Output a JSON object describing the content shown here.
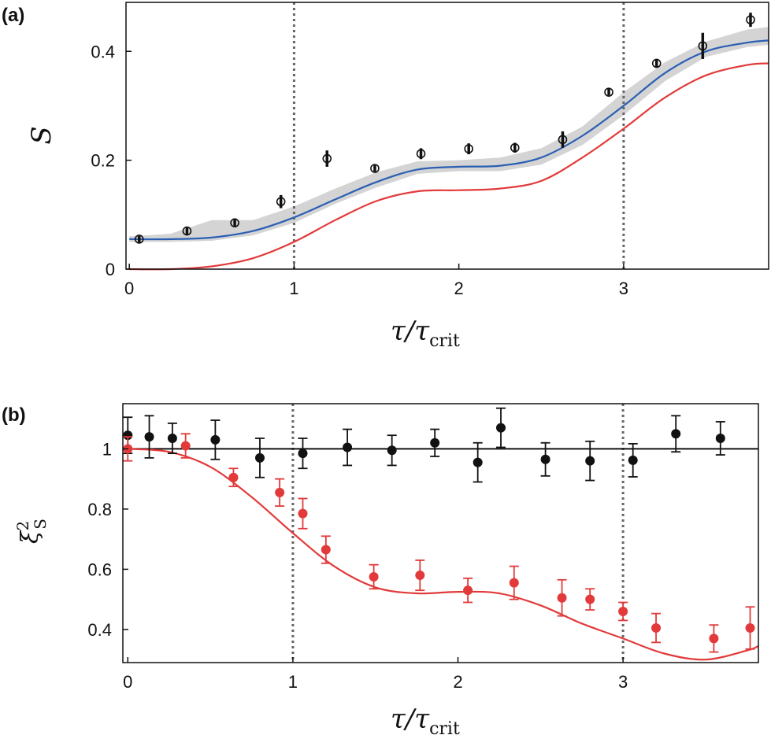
{
  "chart_data": [
    {
      "panel": "(a)",
      "type": "scatter",
      "xlabel": "τ/τ_crit",
      "xlabel_main": "τ/τ",
      "xlabel_sub": "crit",
      "ylabel": "S",
      "xlim": [
        -0.02,
        3.88
      ],
      "ylim": [
        0,
        0.49
      ],
      "xticks": [
        "0",
        "1",
        "2",
        "3"
      ],
      "yticks": [
        "0",
        "0.2",
        "0.4"
      ],
      "vlines": [
        1,
        3
      ],
      "series": [
        {
          "kind": "points-open",
          "color": "#111111",
          "points": [
            {
              "x": 0.06,
              "y": 0.055,
              "err": 0.006
            },
            {
              "x": 0.35,
              "y": 0.07,
              "err": 0.006
            },
            {
              "x": 0.64,
              "y": 0.085,
              "err": 0.006
            },
            {
              "x": 0.92,
              "y": 0.124,
              "err": 0.012
            },
            {
              "x": 1.2,
              "y": 0.203,
              "err": 0.015
            },
            {
              "x": 1.49,
              "y": 0.185,
              "err": 0.006
            },
            {
              "x": 1.77,
              "y": 0.212,
              "err": 0.01
            },
            {
              "x": 2.06,
              "y": 0.221,
              "err": 0.01
            },
            {
              "x": 2.34,
              "y": 0.223,
              "err": 0.009
            },
            {
              "x": 2.63,
              "y": 0.238,
              "err": 0.015
            },
            {
              "x": 2.91,
              "y": 0.325,
              "err": 0.006
            },
            {
              "x": 3.2,
              "y": 0.378,
              "err": 0.008
            },
            {
              "x": 3.48,
              "y": 0.41,
              "err": 0.024
            },
            {
              "x": 3.77,
              "y": 0.458,
              "err": 0.013
            }
          ]
        },
        {
          "kind": "line",
          "color": "#2b5fb4",
          "x": [
            0,
            0.25,
            0.5,
            0.75,
            1.0,
            1.25,
            1.5,
            1.75,
            2.0,
            2.25,
            2.5,
            2.75,
            3.0,
            3.25,
            3.5,
            3.75,
            3.88
          ],
          "y": [
            0.055,
            0.055,
            0.058,
            0.07,
            0.095,
            0.128,
            0.16,
            0.183,
            0.188,
            0.19,
            0.205,
            0.245,
            0.3,
            0.36,
            0.4,
            0.416,
            0.42
          ]
        },
        {
          "kind": "line",
          "color": "#e23a3a",
          "x": [
            0,
            0.25,
            0.5,
            0.75,
            1.0,
            1.25,
            1.5,
            1.75,
            2.0,
            2.25,
            2.5,
            2.75,
            3.0,
            3.25,
            3.5,
            3.75,
            3.88
          ],
          "y": [
            0.0,
            0.0,
            0.005,
            0.02,
            0.05,
            0.09,
            0.125,
            0.143,
            0.145,
            0.148,
            0.162,
            0.205,
            0.258,
            0.315,
            0.356,
            0.375,
            0.378
          ]
        },
        {
          "kind": "band",
          "color": "#cfcfcf",
          "x": [
            0,
            0.25,
            0.5,
            0.75,
            1.0,
            1.25,
            1.5,
            1.75,
            2.0,
            2.25,
            2.5,
            2.75,
            3.0,
            3.25,
            3.5,
            3.75,
            3.88
          ],
          "lower": [
            0.05,
            0.05,
            0.052,
            0.062,
            0.085,
            0.12,
            0.15,
            0.175,
            0.18,
            0.18,
            0.192,
            0.228,
            0.283,
            0.345,
            0.39,
            0.408,
            0.412
          ],
          "upper": [
            0.06,
            0.065,
            0.09,
            0.09,
            0.115,
            0.148,
            0.178,
            0.198,
            0.2,
            0.205,
            0.222,
            0.262,
            0.325,
            0.38,
            0.418,
            0.44,
            0.445
          ]
        }
      ]
    },
    {
      "panel": "(b)",
      "type": "scatter",
      "xlabel": "τ/τ_crit",
      "xlabel_main": "τ/τ",
      "xlabel_sub": "crit",
      "ylabel": "ξ²_S",
      "ylabel_main": "ξ",
      "ylabel_sup": "2",
      "ylabel_sub": "S",
      "xlim": [
        -0.03,
        3.82
      ],
      "ylim": [
        0.29,
        1.15
      ],
      "xticks": [
        "0",
        "1",
        "2",
        "3"
      ],
      "yticks": [
        "0.4",
        "0.6",
        "0.8",
        "1"
      ],
      "vlines": [
        1,
        3
      ],
      "hline": 1,
      "series": [
        {
          "kind": "points-filled",
          "color": "#111111",
          "points": [
            {
              "x": 0.0,
              "y": 1.045,
              "err": 0.06
            },
            {
              "x": 0.13,
              "y": 1.04,
              "err": 0.07
            },
            {
              "x": 0.27,
              "y": 1.035,
              "err": 0.05
            },
            {
              "x": 0.53,
              "y": 1.03,
              "err": 0.065
            },
            {
              "x": 0.8,
              "y": 0.97,
              "err": 0.065
            },
            {
              "x": 1.06,
              "y": 0.985,
              "err": 0.05
            },
            {
              "x": 1.33,
              "y": 1.005,
              "err": 0.06
            },
            {
              "x": 1.6,
              "y": 0.995,
              "err": 0.05
            },
            {
              "x": 1.86,
              "y": 1.02,
              "err": 0.045
            },
            {
              "x": 2.12,
              "y": 0.955,
              "err": 0.065
            },
            {
              "x": 2.26,
              "y": 1.07,
              "err": 0.065
            },
            {
              "x": 2.53,
              "y": 0.965,
              "err": 0.055
            },
            {
              "x": 2.8,
              "y": 0.96,
              "err": 0.065
            },
            {
              "x": 3.06,
              "y": 0.962,
              "err": 0.055
            },
            {
              "x": 3.32,
              "y": 1.05,
              "err": 0.06
            },
            {
              "x": 3.59,
              "y": 1.035,
              "err": 0.055
            }
          ]
        },
        {
          "kind": "points-filled",
          "color": "#e23a3a",
          "points": [
            {
              "x": 0.0,
              "y": 1.0,
              "err": 0.04
            },
            {
              "x": 0.35,
              "y": 1.01,
              "err": 0.04
            },
            {
              "x": 0.64,
              "y": 0.905,
              "err": 0.03
            },
            {
              "x": 0.92,
              "y": 0.855,
              "err": 0.045
            },
            {
              "x": 1.06,
              "y": 0.785,
              "err": 0.05
            },
            {
              "x": 1.2,
              "y": 0.665,
              "err": 0.045
            },
            {
              "x": 1.49,
              "y": 0.575,
              "err": 0.04
            },
            {
              "x": 1.77,
              "y": 0.58,
              "err": 0.05
            },
            {
              "x": 2.06,
              "y": 0.53,
              "err": 0.04
            },
            {
              "x": 2.34,
              "y": 0.555,
              "err": 0.055
            },
            {
              "x": 2.63,
              "y": 0.505,
              "err": 0.06
            },
            {
              "x": 2.8,
              "y": 0.5,
              "err": 0.035
            },
            {
              "x": 3.0,
              "y": 0.46,
              "err": 0.03
            },
            {
              "x": 3.2,
              "y": 0.405,
              "err": 0.048
            },
            {
              "x": 3.55,
              "y": 0.37,
              "err": 0.045
            },
            {
              "x": 3.77,
              "y": 0.405,
              "err": 0.07
            }
          ]
        },
        {
          "kind": "line",
          "color": "#e23a3a",
          "x": [
            0,
            0.25,
            0.5,
            0.75,
            1.0,
            1.25,
            1.5,
            1.75,
            2.0,
            2.25,
            2.5,
            2.75,
            3.0,
            3.25,
            3.5,
            3.75,
            3.82
          ],
          "y": [
            1.0,
            0.99,
            0.94,
            0.84,
            0.72,
            0.61,
            0.54,
            0.52,
            0.525,
            0.52,
            0.48,
            0.42,
            0.37,
            0.32,
            0.3,
            0.33,
            0.345
          ]
        }
      ]
    }
  ]
}
